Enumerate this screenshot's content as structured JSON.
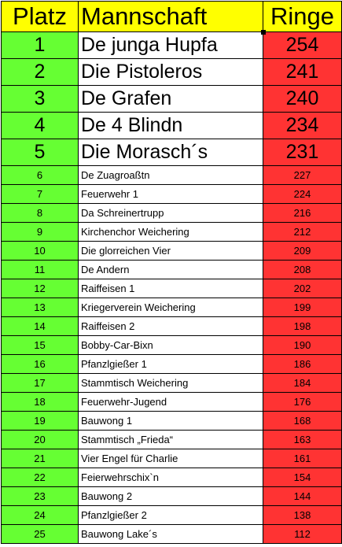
{
  "header": {
    "place": "Platz",
    "team": "Mannschaft",
    "rings": "Ringe"
  },
  "colors": {
    "header_bg": "#ffff00",
    "place_bg": "#66ff33",
    "team_bg": "#ffffff",
    "rings_bg": "#ff3333"
  },
  "rows": [
    {
      "place": "1",
      "team": "De junga Hupfa",
      "rings": "254"
    },
    {
      "place": "2",
      "team": "Die Pistoleros",
      "rings": "241"
    },
    {
      "place": "3",
      "team": "De Grafen",
      "rings": "240"
    },
    {
      "place": "4",
      "team": "De 4 Blindn",
      "rings": "234"
    },
    {
      "place": "5",
      "team": "Die Morasch´s",
      "rings": "231"
    },
    {
      "place": "6",
      "team": "De Zuagroaßtn",
      "rings": "227"
    },
    {
      "place": "7",
      "team": "Feuerwehr 1",
      "rings": "224"
    },
    {
      "place": "8",
      "team": "Da Schreinertrupp",
      "rings": "216"
    },
    {
      "place": "9",
      "team": "Kirchenchor Weichering",
      "rings": "212"
    },
    {
      "place": "10",
      "team": "Die glorreichen Vier",
      "rings": "209"
    },
    {
      "place": "11",
      "team": "De Andern",
      "rings": "208"
    },
    {
      "place": "12",
      "team": "Raiffeisen 1",
      "rings": "202"
    },
    {
      "place": "13",
      "team": "Kriegerverein Weichering",
      "rings": "199"
    },
    {
      "place": "14",
      "team": "Raiffeisen 2",
      "rings": "198"
    },
    {
      "place": "15",
      "team": "Bobby-Car-Bixn",
      "rings": "190"
    },
    {
      "place": "16",
      "team": "Pfanzlgießer 1",
      "rings": "186"
    },
    {
      "place": "17",
      "team": "Stammtisch Weichering",
      "rings": "184"
    },
    {
      "place": "18",
      "team": "Feuerwehr-Jugend",
      "rings": "176"
    },
    {
      "place": "19",
      "team": "Bauwong 1",
      "rings": "168"
    },
    {
      "place": "20",
      "team": "Stammtisch „Frieda“",
      "rings": "163"
    },
    {
      "place": "21",
      "team": "Vier Engel für Charlie",
      "rings": "161"
    },
    {
      "place": "22",
      "team": "Feierwehrschix`n",
      "rings": "154"
    },
    {
      "place": "23",
      "team": "Bauwong 2",
      "rings": "144"
    },
    {
      "place": "24",
      "team": "Pfanzlgießer 2",
      "rings": "138"
    },
    {
      "place": "25",
      "team": "Bauwong Lake´s",
      "rings": 112
    }
  ]
}
